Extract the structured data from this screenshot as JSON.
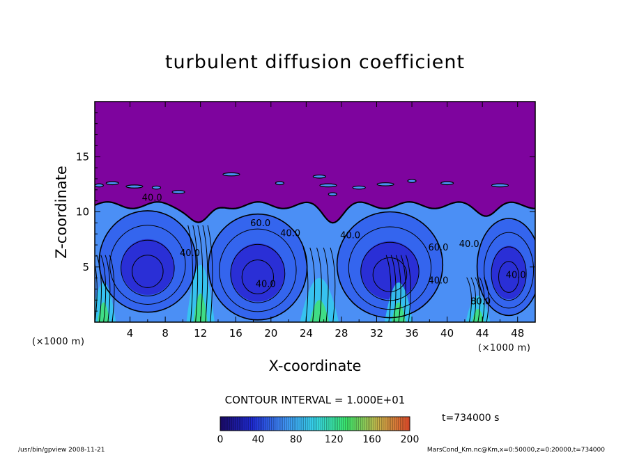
{
  "chart_data": {
    "type": "heatmap",
    "title": "turbulent diffusion coefficient",
    "xlabel": "X-coordinate",
    "ylabel": "Z-coordinate",
    "x_unit_left": "(×1000 m)",
    "x_unit_right": "(×1000 m)",
    "xlim": [
      0,
      50
    ],
    "ylim": [
      0,
      20
    ],
    "x_ticks": [
      "4",
      "8",
      "12",
      "16",
      "20",
      "24",
      "28",
      "32",
      "36",
      "40",
      "44",
      "48"
    ],
    "y_ticks": [
      "5",
      "10",
      "15"
    ],
    "contour_labels": [
      {
        "text": "40.0",
        "x": 6.5,
        "y": 11.0
      },
      {
        "text": "40.0",
        "x": 10.8,
        "y": 6.0
      },
      {
        "text": "60.0",
        "x": 18.8,
        "y": 8.7
      },
      {
        "text": "40.0",
        "x": 19.4,
        "y": 3.2
      },
      {
        "text": "40.0",
        "x": 22.2,
        "y": 7.8
      },
      {
        "text": "40.0",
        "x": 29.0,
        "y": 7.6
      },
      {
        "text": "60.0",
        "x": 39.0,
        "y": 6.5
      },
      {
        "text": "40.0",
        "x": 39.0,
        "y": 3.5
      },
      {
        "text": "40.0",
        "x": 42.5,
        "y": 6.8
      },
      {
        "text": "40.0",
        "x": 47.8,
        "y": 4.0
      },
      {
        "text": "80.0",
        "x": 43.8,
        "y": 1.6
      }
    ],
    "contour_interval_label": "CONTOUR INTERVAL = 1.000E+01",
    "colorbar": {
      "min": 0,
      "max": 200,
      "ticks": [
        "0",
        "40",
        "80",
        "120",
        "160",
        "200"
      ],
      "colors": [
        "#1a0a66",
        "#1e2ad4",
        "#3f8df2",
        "#36d4e8",
        "#3be46a",
        "#c8b44a",
        "#e24a2a"
      ]
    },
    "colors": {
      "background": "#7e049e",
      "field": [
        "#2a2fd6",
        "#3465ee",
        "#4b8ff5",
        "#35c8f0",
        "#40e07a"
      ]
    },
    "time_label": "t=734000 s",
    "footer_left": "/usr/bin/gpview  2008-11-21",
    "footer_right": "MarsCond_Km.nc@Km,x=0:50000,z=0:20000,t=734000"
  }
}
